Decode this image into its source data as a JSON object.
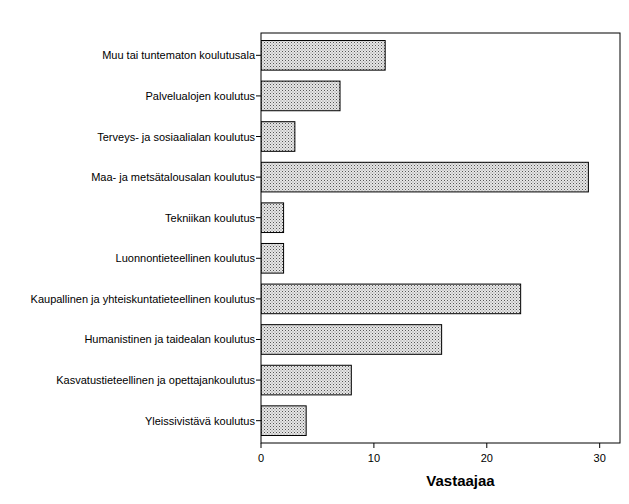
{
  "chart_data": {
    "type": "bar",
    "orientation": "horizontal",
    "x_label": "Vastaajaa",
    "categories": [
      "Muu tai tuntematon koulutusala",
      "Palvelualojen koulutus",
      "Terveys- ja sosiaalialan koulutus",
      "Maa- ja metsätalousalan koulutus",
      "Tekniikan koulutus",
      "Luonnontieteellinen koulutus",
      "Kaupallinen ja yhteiskuntatieteellinen koulutus",
      "Humanistinen ja taidealan koulutus",
      "Kasvatustieteellinen ja opettajankoulutus",
      "Yleissivistävä koulutus"
    ],
    "values": [
      11,
      7,
      3,
      29,
      2,
      2,
      23,
      16,
      8,
      4
    ],
    "color": "#e6e6e6",
    "xlim": [
      0,
      31.8
    ],
    "xticks": [
      0,
      10,
      20,
      30
    ],
    "grid": false
  }
}
